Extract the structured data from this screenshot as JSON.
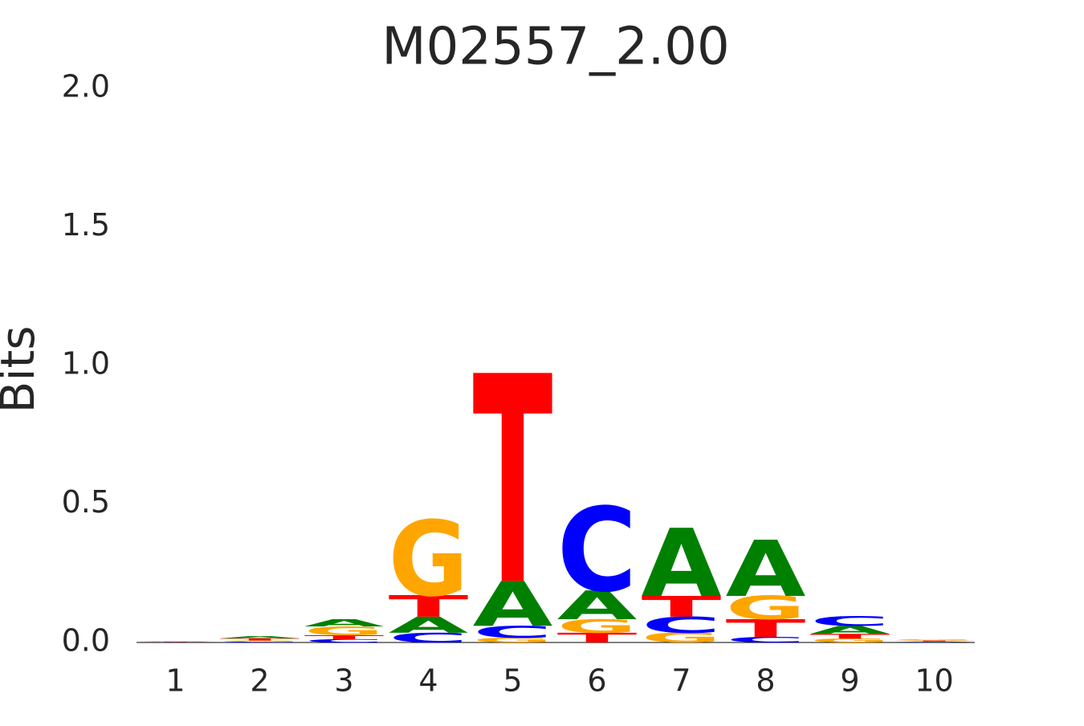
{
  "chart_data": {
    "type": "logo",
    "title": "M02557_2.00",
    "y_label": "Bits",
    "categories": [
      "1",
      "2",
      "3",
      "4",
      "5",
      "6",
      "7",
      "8",
      "9",
      "10"
    ],
    "letter_colors": {
      "A": "#008000",
      "C": "#0000ff",
      "G": "#ffa500",
      "T": "#ff0000"
    },
    "stacks": [
      [
        {
          "letter": "C",
          "value": 0.001
        },
        {
          "letter": "G",
          "value": 0.001
        },
        {
          "letter": "T",
          "value": 0.001
        },
        {
          "letter": "A",
          "value": 0.001
        }
      ],
      [
        {
          "letter": "C",
          "value": 0.003
        },
        {
          "letter": "G",
          "value": 0.004
        },
        {
          "letter": "T",
          "value": 0.008
        },
        {
          "letter": "A",
          "value": 0.008
        }
      ],
      [
        {
          "letter": "C",
          "value": 0.012
        },
        {
          "letter": "T",
          "value": 0.014
        },
        {
          "letter": "G",
          "value": 0.032
        },
        {
          "letter": "A",
          "value": 0.026
        }
      ],
      [
        {
          "letter": "C",
          "value": 0.035
        },
        {
          "letter": "A",
          "value": 0.058
        },
        {
          "letter": "T",
          "value": 0.078
        },
        {
          "letter": "G",
          "value": 0.272
        }
      ],
      [
        {
          "letter": "G",
          "value": 0.017
        },
        {
          "letter": "C",
          "value": 0.043
        },
        {
          "letter": "A",
          "value": 0.162
        },
        {
          "letter": "T",
          "value": 0.751
        }
      ],
      [
        {
          "letter": "T",
          "value": 0.035
        },
        {
          "letter": "G",
          "value": 0.049
        },
        {
          "letter": "A",
          "value": 0.104
        },
        {
          "letter": "C",
          "value": 0.304
        }
      ],
      [
        {
          "letter": "G",
          "value": 0.035
        },
        {
          "letter": "C",
          "value": 0.058
        },
        {
          "letter": "T",
          "value": 0.075
        },
        {
          "letter": "A",
          "value": 0.246
        }
      ],
      [
        {
          "letter": "C",
          "value": 0.02
        },
        {
          "letter": "T",
          "value": 0.064
        },
        {
          "letter": "G",
          "value": 0.084
        },
        {
          "letter": "A",
          "value": 0.203
        }
      ],
      [
        {
          "letter": "G",
          "value": 0.014
        },
        {
          "letter": "T",
          "value": 0.017
        },
        {
          "letter": "A",
          "value": 0.029
        },
        {
          "letter": "C",
          "value": 0.035
        }
      ],
      [
        {
          "letter": "C",
          "value": 0.002
        },
        {
          "letter": "A",
          "value": 0.002
        },
        {
          "letter": "T",
          "value": 0.003
        },
        {
          "letter": "G",
          "value": 0.003
        }
      ]
    ],
    "ylim": [
      0,
      2
    ],
    "yticks": [
      {
        "value": 0,
        "label": "0.0"
      },
      0.5,
      {
        "value": 1,
        "label": "1.0"
      },
      1.5,
      {
        "value": 2,
        "label": "2.0"
      }
    ]
  }
}
